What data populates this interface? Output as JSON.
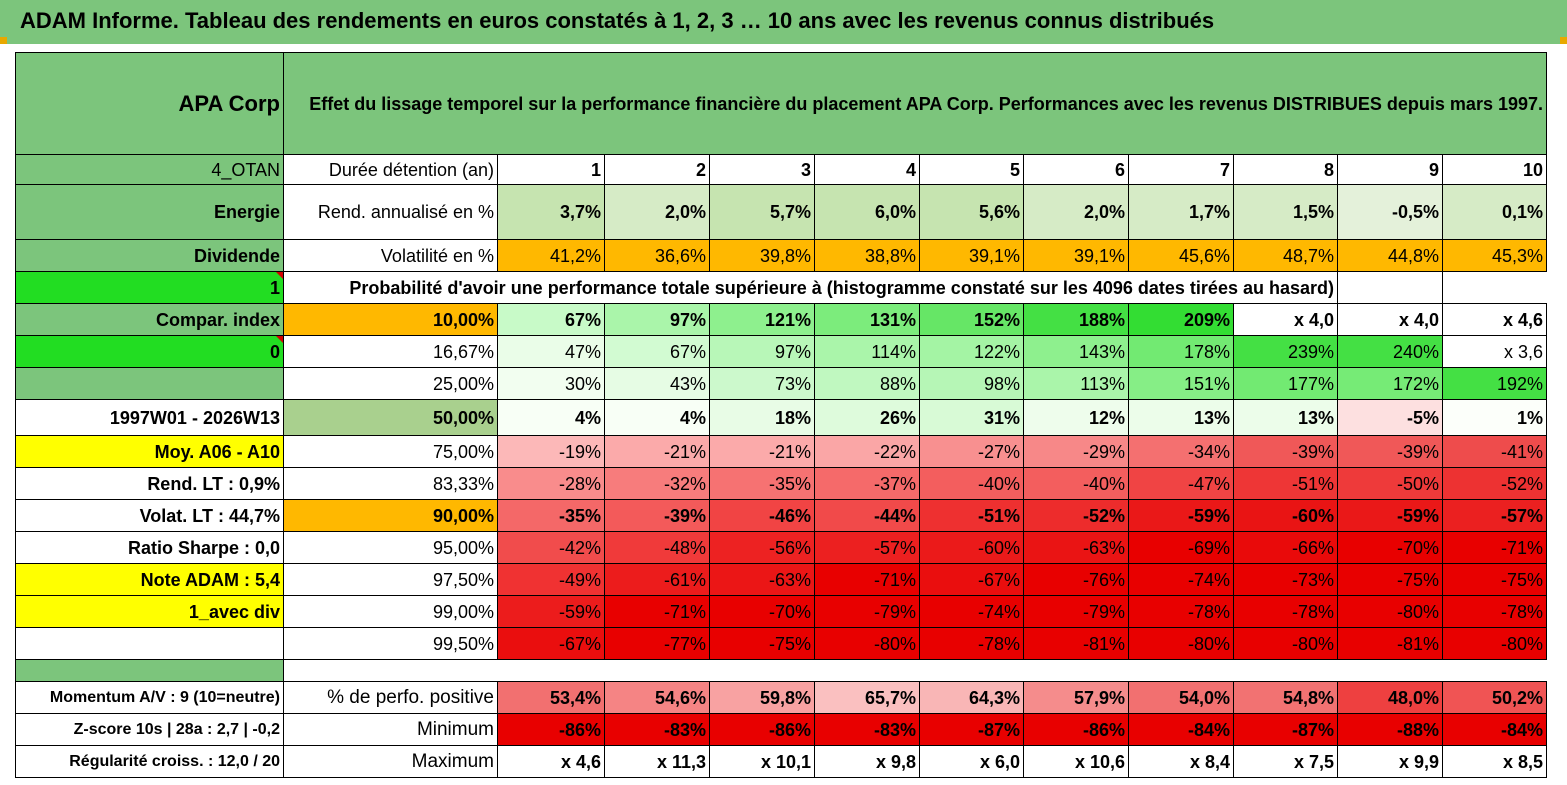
{
  "title": "ADAM Informe. Tableau des rendements en euros constatés à 1, 2, 3 … 10 ans avec les revenus connus distribués",
  "side": {
    "name": "APA Corp",
    "code": "4_OTAN",
    "sector": "Energie",
    "kind": "Dividende",
    "one": "1",
    "compar": "Compar. index",
    "zero": "0",
    "period": "1997W01 - 2026W13",
    "moy": "Moy. A06 - A10",
    "rend_lt": "Rend. LT :   0,9%",
    "volat_lt": "Volat. LT :   44,7%",
    "sharpe": "Ratio Sharpe :    0,0",
    "note": "Note ADAM : 5,4",
    "avec_div": "1_avec div",
    "momentum": "Momentum A/V : 9 (10=neutre)",
    "zscore": "Z-score 10s | 28a : 2,7 | -0,2",
    "regularite": "Régularité croiss. : 12,0 / 20"
  },
  "description": "Effet du lissage temporel sur la performance financière du placement APA Corp. Performances avec les revenus DISTRIBUES depuis mars 1997.",
  "header": {
    "label": "Durée détention (an)",
    "years": [
      "1",
      "2",
      "3",
      "4",
      "5",
      "6",
      "7",
      "8",
      "9",
      "10"
    ]
  },
  "rend": {
    "label": "Rend. annualisé en %",
    "values": [
      "3,7%",
      "2,0%",
      "5,7%",
      "6,0%",
      "5,6%",
      "2,0%",
      "1,7%",
      "1,5%",
      "-0,5%",
      "0,1%"
    ]
  },
  "volat": {
    "label": "Volatilité en %",
    "values": [
      "41,2%",
      "36,6%",
      "39,8%",
      "38,8%",
      "39,1%",
      "39,1%",
      "45,6%",
      "48,7%",
      "44,8%",
      "45,3%"
    ]
  },
  "proba_label": "Probabilité d'avoir une performance totale supérieure à (histogramme constaté sur les 4096 dates tirées au hasard)",
  "quantiles": [
    {
      "q": "10,00%",
      "values": [
        "67%",
        "97%",
        "121%",
        "131%",
        "152%",
        "188%",
        "209%",
        "x 4,0",
        "x 4,0",
        "x 4,6"
      ]
    },
    {
      "q": "16,67%",
      "values": [
        "47%",
        "67%",
        "97%",
        "114%",
        "122%",
        "143%",
        "178%",
        "239%",
        "240%",
        "x 3,6"
      ]
    },
    {
      "q": "25,00%",
      "values": [
        "30%",
        "43%",
        "73%",
        "88%",
        "98%",
        "113%",
        "151%",
        "177%",
        "172%",
        "192%"
      ]
    },
    {
      "q": "50,00%",
      "values": [
        "4%",
        "4%",
        "18%",
        "26%",
        "31%",
        "12%",
        "13%",
        "13%",
        "-5%",
        "1%"
      ]
    },
    {
      "q": "75,00%",
      "values": [
        "-19%",
        "-21%",
        "-21%",
        "-22%",
        "-27%",
        "-29%",
        "-34%",
        "-39%",
        "-39%",
        "-41%"
      ]
    },
    {
      "q": "83,33%",
      "values": [
        "-28%",
        "-32%",
        "-35%",
        "-37%",
        "-40%",
        "-40%",
        "-47%",
        "-51%",
        "-50%",
        "-52%"
      ]
    },
    {
      "q": "90,00%",
      "values": [
        "-35%",
        "-39%",
        "-46%",
        "-44%",
        "-51%",
        "-52%",
        "-59%",
        "-60%",
        "-59%",
        "-57%"
      ]
    },
    {
      "q": "95,00%",
      "values": [
        "-42%",
        "-48%",
        "-56%",
        "-57%",
        "-60%",
        "-63%",
        "-69%",
        "-66%",
        "-70%",
        "-71%"
      ]
    },
    {
      "q": "97,50%",
      "values": [
        "-49%",
        "-61%",
        "-63%",
        "-71%",
        "-67%",
        "-76%",
        "-74%",
        "-73%",
        "-75%",
        "-75%"
      ]
    },
    {
      "q": "99,00%",
      "values": [
        "-59%",
        "-71%",
        "-70%",
        "-79%",
        "-74%",
        "-79%",
        "-78%",
        "-78%",
        "-80%",
        "-78%"
      ]
    },
    {
      "q": "99,50%",
      "values": [
        "-67%",
        "-77%",
        "-75%",
        "-80%",
        "-78%",
        "-81%",
        "-80%",
        "-80%",
        "-81%",
        "-80%"
      ]
    }
  ],
  "stats": [
    {
      "label": "% de perfo. positive",
      "values": [
        "53,4%",
        "54,6%",
        "59,8%",
        "65,7%",
        "64,3%",
        "57,9%",
        "54,0%",
        "54,8%",
        "48,0%",
        "50,2%"
      ]
    },
    {
      "label": "Minimum",
      "values": [
        "-86%",
        "-83%",
        "-86%",
        "-83%",
        "-87%",
        "-86%",
        "-84%",
        "-87%",
        "-88%",
        "-84%"
      ]
    },
    {
      "label": "Maximum",
      "values": [
        "x 4,6",
        "x 11,3",
        "x 10,1",
        "x 9,8",
        "x 6,0",
        "x 10,6",
        "x 8,4",
        "x 7,5",
        "x 9,9",
        "x 8,5"
      ]
    }
  ],
  "colors": {
    "green_header": "#7cc57c",
    "bright_green": "#22dd22",
    "yellow": "#ffff00",
    "orange": "#ffb800",
    "period_red": "#d40000",
    "rend_bg": [
      "#c6e4b0",
      "#d6ebc6",
      "#c6e4b0",
      "#c6e4b0",
      "#c6e4b0",
      "#d6ebc6",
      "#d6ebc6",
      "#d6ebc6",
      "#e4f1da",
      "#d6ebc6"
    ],
    "volat_bg": [
      "#ffb800",
      "#ffb800",
      "#ffb800",
      "#ffb800",
      "#ffb800",
      "#ffb800",
      "#ffb800",
      "#ffb800",
      "#ffb800",
      "#ffb800"
    ],
    "q_bg": [
      [
        "#c8fac8",
        "#aaf5aa",
        "#8ef08e",
        "#7cec7c",
        "#66e666",
        "#44e044",
        "#33dd33",
        "#ffffff",
        "#ffffff",
        "#ffffff"
      ],
      [
        "#eafde8",
        "#d2fbd2",
        "#b8f7b8",
        "#aaf5aa",
        "#a4f4a4",
        "#8ef08e",
        "#72ea72",
        "#44e044",
        "#44e044",
        "#ffffff"
      ],
      [
        "#f2fef0",
        "#e6fce4",
        "#ccf9cc",
        "#c0f8c0",
        "#b6f6b6",
        "#aaf5aa",
        "#86ee86",
        "#72ea72",
        "#76eb76",
        "#44e044"
      ],
      [
        "#f8fff6",
        "#f8fff6",
        "#e8fce6",
        "#defbdc",
        "#d8fad6",
        "#eefdec",
        "#ecfdea",
        "#ecfdea",
        "#fde0e0",
        "#fcfffa"
      ],
      [
        "#fcb8b8",
        "#fbaaaa",
        "#fbaaaa",
        "#faa6a6",
        "#f89090",
        "#f78888",
        "#f47070",
        "#f05858",
        "#f05858",
        "#ee4c4c"
      ],
      [
        "#f98c8c",
        "#f77c7c",
        "#f67272",
        "#f56a6a",
        "#f35e5e",
        "#f35e5e",
        "#f04444",
        "#ee3636",
        "#ee3a3a",
        "#ed3232"
      ],
      [
        "#f46868",
        "#f35a5a",
        "#f14444",
        "#f14a4a",
        "#ee3030",
        "#ed2c2c",
        "#ea1818",
        "#e91414",
        "#ea1818",
        "#eb2020"
      ],
      [
        "#f14c4c",
        "#f03a3a",
        "#ed2222",
        "#ec2020",
        "#eb1a1a",
        "#ea1414",
        "#e80000",
        "#e90a0a",
        "#e80000",
        "#e80000"
      ],
      [
        "#f03232",
        "#ec1c1c",
        "#eb1616",
        "#e80000",
        "#ea0e0e",
        "#e80000",
        "#e80000",
        "#e80000",
        "#e80000",
        "#e80000"
      ],
      [
        "#ec1c1c",
        "#e80000",
        "#e80000",
        "#e80000",
        "#e80000",
        "#e80000",
        "#e80000",
        "#e80000",
        "#e80000",
        "#e80000"
      ],
      [
        "#ea0e0e",
        "#e80000",
        "#e80000",
        "#e80000",
        "#e80000",
        "#e80000",
        "#e80000",
        "#e80000",
        "#e80000",
        "#e80000"
      ]
    ],
    "stat_bg": [
      [
        "#f27070",
        "#f58484",
        "#f8a2a2",
        "#fac0c0",
        "#f9b6b6",
        "#f58c8c",
        "#f27070",
        "#f27272",
        "#ee4040",
        "#f05454"
      ],
      [
        "#e80000",
        "#e80000",
        "#e80000",
        "#e80000",
        "#e80000",
        "#e80000",
        "#e80000",
        "#e80000",
        "#e80000",
        "#e80000"
      ],
      [
        "#ffffff",
        "#ffffff",
        "#ffffff",
        "#ffffff",
        "#ffffff",
        "#ffffff",
        "#ffffff",
        "#ffffff",
        "#ffffff",
        "#ffffff"
      ]
    ]
  }
}
